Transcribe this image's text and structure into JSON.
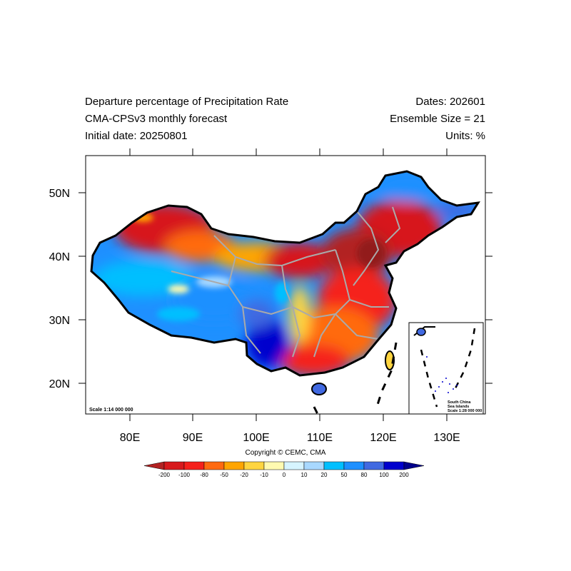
{
  "header": {
    "title": "Departure percentage of Precipitation Rate",
    "subtitle": "CMA-CPSv3 monthly forecast",
    "initial_date": "Initial date: 20250801",
    "dates": "Dates: 202601",
    "ensemble": "Ensemble Size = 21",
    "units": "Units: %"
  },
  "map": {
    "scale_label": "Scale 1:14 000 000",
    "lon_labels": [
      "80E",
      "90E",
      "100E",
      "110E",
      "120E",
      "130E"
    ],
    "lat_labels": [
      "50N",
      "40N",
      "30N",
      "20N"
    ],
    "inset": {
      "line1": "South China",
      "line2": "Sea Islands",
      "line3": "Scale 1:28 000 000"
    },
    "copyright": "Copyright © CEMC, CMA"
  },
  "colorbar": {
    "labels": [
      "-200",
      "-100",
      "-80",
      "-50",
      "-20",
      "-10",
      "0",
      "10",
      "20",
      "50",
      "80",
      "100",
      "200"
    ],
    "colors": [
      "#b22222",
      "#d7191c",
      "#f5201b",
      "#ff6a10",
      "#ffa500",
      "#ffd540",
      "#fffab0",
      "#d6f4ff",
      "#a8d8ff",
      "#00bfff",
      "#1e90ff",
      "#4169e1",
      "#0000cd",
      "#00008b"
    ]
  }
}
